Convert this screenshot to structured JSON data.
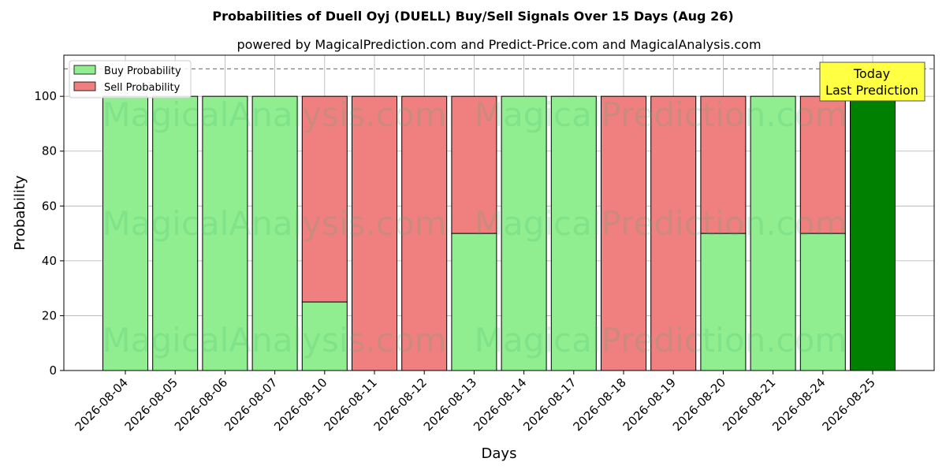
{
  "chart_data": {
    "type": "bar",
    "stacked": true,
    "title": "Probabilities of Duell Oyj (DUELL) Buy/Sell Signals Over 15 Days (Aug 26)",
    "subtitle": "powered by MagicalPrediction.com and Predict-Price.com and MagicalAnalysis.com",
    "xlabel": "Days",
    "ylabel": "Probability",
    "ylim": [
      0,
      115
    ],
    "yticks": [
      0,
      20,
      40,
      60,
      80,
      100
    ],
    "grid": true,
    "legend_position": "top-left",
    "reference_line": 110,
    "categories": [
      "2026-08-04",
      "2026-08-05",
      "2026-08-06",
      "2026-08-07",
      "2026-08-10",
      "2026-08-11",
      "2026-08-12",
      "2026-08-13",
      "2026-08-14",
      "2026-08-17",
      "2026-08-18",
      "2026-08-19",
      "2026-08-20",
      "2026-08-21",
      "2026-08-24",
      "2026-08-25"
    ],
    "series": [
      {
        "name": "Buy Probability",
        "color": "#90ee90",
        "values": [
          100,
          100,
          100,
          100,
          25,
          0,
          0,
          50,
          100,
          100,
          0,
          0,
          50,
          100,
          50,
          null
        ]
      },
      {
        "name": "Sell Probability",
        "color": "#f08080",
        "values": [
          0,
          0,
          0,
          0,
          75,
          100,
          100,
          50,
          0,
          0,
          100,
          100,
          50,
          0,
          50,
          null
        ]
      }
    ],
    "today_bar": {
      "category": "2026-08-25",
      "value": 100,
      "color": "#008000"
    },
    "annotation": {
      "line1": "Today",
      "line2": "Last Prediction",
      "background": "#ffff44"
    },
    "watermark": {
      "left": "MagicalAnalysis.com",
      "right": "MagicalPrediction.com"
    }
  }
}
